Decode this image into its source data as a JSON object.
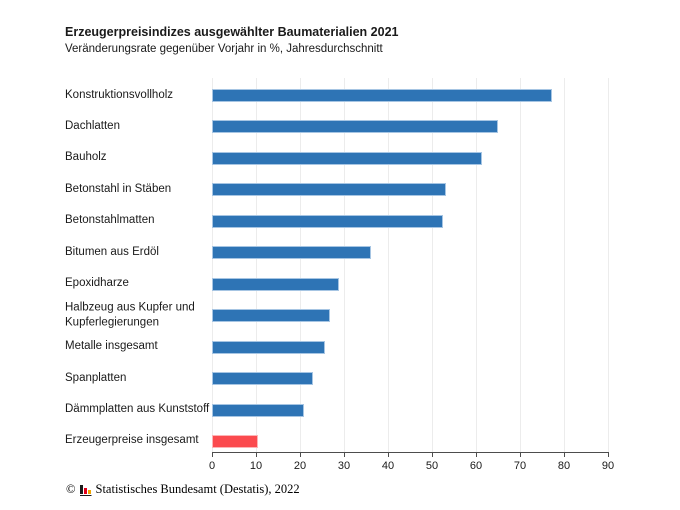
{
  "chart": {
    "title": "Erzeugerpreisindizes ausgewählter Baumaterialien 2021",
    "subtitle": "Veränderungsrate gegenüber Vorjahr in %, Jahresdurchschnitt"
  },
  "chart_data": {
    "type": "bar",
    "orientation": "horizontal",
    "title": "Erzeugerpreisindizes ausgewählter Baumaterialien 2021",
    "subtitle": "Veränderungsrate gegenüber Vorjahr in %, Jahresdurchschnitt",
    "unit": "%",
    "categories": [
      "Konstruktionsvollholz",
      "Dachlatten",
      "Bauholz",
      "Betonstahl in Stäben",
      "Betonstahlmatten",
      "Bitumen aus Erdöl",
      "Epoxidharze",
      "Halbzeug aus Kupfer und Kupferlegierungen",
      "Metalle insgesamt",
      "Spanplatten",
      "Dämmplatten aus Kunststoff",
      "Erzeugerpreise insgesamt"
    ],
    "values": [
      77.3,
      65.1,
      61.4,
      53.2,
      52.6,
      36.2,
      28.9,
      26.9,
      25.6,
      23.0,
      20.8,
      10.5
    ],
    "highlight_index": 11,
    "xlim": [
      0,
      90
    ],
    "xticks": [
      0,
      10,
      20,
      30,
      40,
      50,
      60,
      70,
      80,
      90
    ],
    "grid": "vertical-light",
    "legend": "none",
    "colors": {
      "bar": "#2e74b5",
      "bar_border": "#a6c5e3",
      "highlight": "#fb4a4e",
      "highlight_border": "#fdb4b6",
      "gridline": "#ececec",
      "axis": "#4d4d4d",
      "text": "#1a1a1a"
    }
  },
  "footer": {
    "copyright": "©",
    "logo": "destatis-bar-logo",
    "source": "Statistisches Bundesamt (Destatis), 2022"
  }
}
